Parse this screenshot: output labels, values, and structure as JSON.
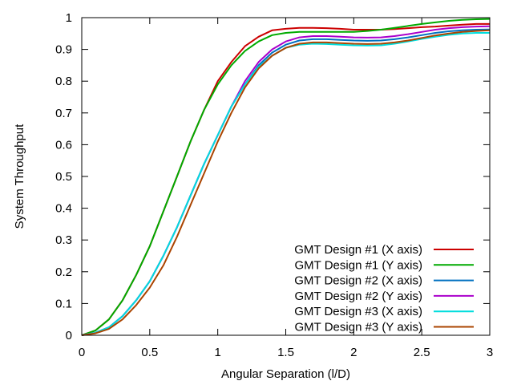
{
  "chart_data": {
    "type": "line",
    "title": "",
    "xlabel": "Angular Separation (l/D)",
    "ylabel": "System Throughput",
    "xlim": [
      0,
      3
    ],
    "ylim": [
      0,
      1
    ],
    "xticks": [
      0,
      0.5,
      1,
      1.5,
      2,
      2.5,
      3
    ],
    "xtick_labels": [
      "0",
      "0.5",
      "1",
      "1.5",
      "2",
      "2.5",
      "3"
    ],
    "yticks": [
      0,
      0.1,
      0.2,
      0.3,
      0.4,
      0.5,
      0.6,
      0.7,
      0.8,
      0.9,
      1
    ],
    "ytick_labels": [
      "0",
      "0.1",
      "0.2",
      "0.3",
      "0.4",
      "0.5",
      "0.6",
      "0.7",
      "0.8",
      "0.9",
      "1"
    ],
    "grid": false,
    "legend_position": "bottom-right",
    "x": [
      0,
      0.1,
      0.2,
      0.3,
      0.4,
      0.5,
      0.6,
      0.7,
      0.8,
      0.9,
      1.0,
      1.1,
      1.2,
      1.3,
      1.4,
      1.5,
      1.6,
      1.7,
      1.8,
      1.9,
      2.0,
      2.1,
      2.2,
      2.3,
      2.4,
      2.5,
      2.6,
      2.7,
      2.8,
      2.9,
      3.0
    ],
    "series": [
      {
        "name": "GMT Design #1 (X axis)",
        "color": "#cc0000",
        "values": [
          0,
          0.015,
          0.05,
          0.11,
          0.19,
          0.28,
          0.39,
          0.5,
          0.61,
          0.71,
          0.8,
          0.86,
          0.91,
          0.94,
          0.96,
          0.965,
          0.968,
          0.968,
          0.967,
          0.965,
          0.962,
          0.962,
          0.962,
          0.964,
          0.967,
          0.97,
          0.972,
          0.975,
          0.978,
          0.98,
          0.98
        ]
      },
      {
        "name": "GMT Design #1 (Y axis)",
        "color": "#00aa00",
        "values": [
          0,
          0.015,
          0.05,
          0.11,
          0.19,
          0.28,
          0.39,
          0.5,
          0.61,
          0.71,
          0.79,
          0.85,
          0.895,
          0.925,
          0.945,
          0.952,
          0.955,
          0.955,
          0.955,
          0.955,
          0.955,
          0.958,
          0.962,
          0.968,
          0.974,
          0.98,
          0.985,
          0.99,
          0.993,
          0.995,
          0.996
        ]
      },
      {
        "name": "GMT Design #2 (X axis)",
        "color": "#0070c0",
        "values": [
          0,
          0.008,
          0.025,
          0.06,
          0.11,
          0.17,
          0.25,
          0.34,
          0.44,
          0.54,
          0.63,
          0.72,
          0.79,
          0.85,
          0.89,
          0.915,
          0.928,
          0.932,
          0.932,
          0.93,
          0.928,
          0.927,
          0.928,
          0.932,
          0.938,
          0.945,
          0.952,
          0.957,
          0.96,
          0.962,
          0.963
        ]
      },
      {
        "name": "GMT Design #2 (Y axis)",
        "color": "#aa00cc",
        "values": [
          0,
          0.008,
          0.025,
          0.06,
          0.11,
          0.17,
          0.25,
          0.34,
          0.44,
          0.54,
          0.63,
          0.72,
          0.8,
          0.86,
          0.9,
          0.925,
          0.938,
          0.942,
          0.942,
          0.94,
          0.938,
          0.937,
          0.938,
          0.942,
          0.948,
          0.955,
          0.962,
          0.967,
          0.97,
          0.972,
          0.973
        ]
      },
      {
        "name": "GMT Design #3 (X axis)",
        "color": "#00dddd",
        "values": [
          0,
          0.008,
          0.025,
          0.06,
          0.11,
          0.17,
          0.25,
          0.34,
          0.44,
          0.54,
          0.63,
          0.72,
          0.79,
          0.845,
          0.88,
          0.905,
          0.915,
          0.918,
          0.917,
          0.915,
          0.913,
          0.912,
          0.913,
          0.918,
          0.925,
          0.933,
          0.94,
          0.946,
          0.95,
          0.952,
          0.952
        ]
      },
      {
        "name": "GMT Design #3 (Y axis)",
        "color": "#aa4400",
        "values": [
          0,
          0.006,
          0.02,
          0.05,
          0.095,
          0.15,
          0.22,
          0.31,
          0.41,
          0.51,
          0.61,
          0.7,
          0.78,
          0.84,
          0.88,
          0.905,
          0.918,
          0.922,
          0.922,
          0.92,
          0.918,
          0.917,
          0.918,
          0.922,
          0.928,
          0.936,
          0.944,
          0.95,
          0.955,
          0.958,
          0.96
        ]
      }
    ]
  }
}
